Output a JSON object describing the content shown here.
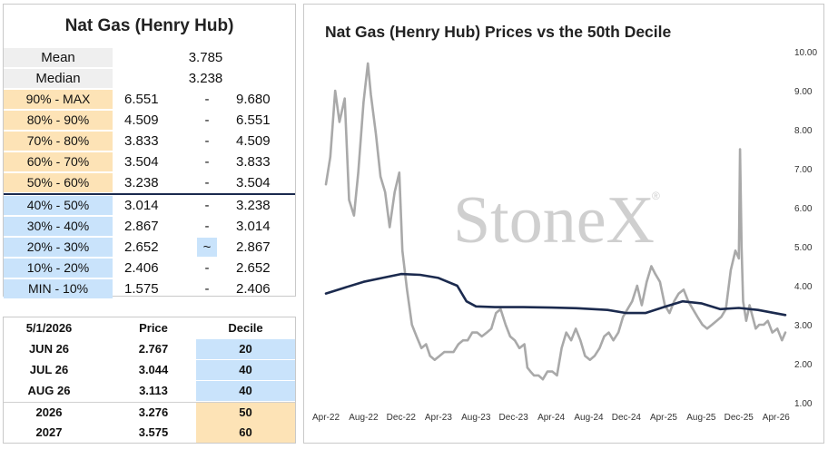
{
  "left_table": {
    "title": "Nat Gas (Henry Hub)",
    "mean": {
      "label": "Mean",
      "value": "3.785"
    },
    "median": {
      "label": "Median",
      "value": "3.238"
    },
    "deciles": [
      {
        "label": "90% - MAX",
        "low": "6.551",
        "sep": "-",
        "high": "9.680",
        "color": "orange"
      },
      {
        "label": "80% - 90%",
        "low": "4.509",
        "sep": "-",
        "high": "6.551",
        "color": "orange"
      },
      {
        "label": "70% - 80%",
        "low": "3.833",
        "sep": "-",
        "high": "4.509",
        "color": "orange"
      },
      {
        "label": "60% - 70%",
        "low": "3.504",
        "sep": "-",
        "high": "3.833",
        "color": "orange"
      },
      {
        "label": "50% - 60%",
        "low": "3.238",
        "sep": "-",
        "high": "3.504",
        "color": "orange"
      },
      {
        "label": "40% - 50%",
        "low": "3.014",
        "sep": "-",
        "high": "3.238",
        "color": "blue"
      },
      {
        "label": "30% - 40%",
        "low": "2.867",
        "sep": "-",
        "high": "3.014",
        "color": "blue"
      },
      {
        "label": "20% - 30%",
        "low": "2.652",
        "sep": "~",
        "high": "2.867",
        "color": "blue",
        "current": true
      },
      {
        "label": "10% - 20%",
        "low": "2.406",
        "sep": "-",
        "high": "2.652",
        "color": "blue"
      },
      {
        "label": "MIN - 10%",
        "low": "1.575",
        "sep": "-",
        "high": "2.406",
        "color": "blue"
      }
    ]
  },
  "bottom_table": {
    "headers": [
      "5/1/2026",
      "Price",
      "Decile"
    ],
    "rows": [
      {
        "contract": "JUN 26",
        "price": "2.767",
        "decile": "20",
        "color": "blue"
      },
      {
        "contract": "JUL 26",
        "price": "3.044",
        "decile": "40",
        "color": "blue"
      },
      {
        "contract": "AUG 26",
        "price": "3.113",
        "decile": "40",
        "color": "blue"
      },
      {
        "contract": "2026",
        "price": "3.276",
        "decile": "50",
        "color": "orange"
      },
      {
        "contract": "2027",
        "price": "3.575",
        "decile": "60",
        "color": "orange"
      }
    ]
  },
  "colors": {
    "orange": "#fde3b6",
    "blue": "#c9e3fb",
    "navy": "#1b2a4e",
    "price_line": "#a9a9a9"
  },
  "chart_data": {
    "type": "line",
    "title": "Nat Gas (Henry Hub) Prices vs the 50th Decile",
    "watermark": "StoneX",
    "x_tick_labels": [
      "Apr-22",
      "Aug-22",
      "Dec-22",
      "Apr-23",
      "Aug-23",
      "Dec-23",
      "Apr-24",
      "Aug-24",
      "Dec-24",
      "Apr-25",
      "Aug-25",
      "Dec-25",
      "Apr-26"
    ],
    "y_tick_labels": [
      "10.00",
      "9.00",
      "8.00",
      "7.00",
      "6.00",
      "5.00",
      "4.00",
      "3.00",
      "2.00",
      "1.00"
    ],
    "ylim": [
      1,
      10
    ],
    "xlim": [
      "2022-04-01",
      "2026-05-01"
    ],
    "series": [
      {
        "key": "price",
        "x": [
          "2022-04-01",
          "2022-04-15",
          "2022-05-01",
          "2022-05-15",
          "2022-06-01",
          "2022-06-15",
          "2022-07-01",
          "2022-07-15",
          "2022-08-01",
          "2022-08-15",
          "2022-08-25",
          "2022-09-10",
          "2022-09-25",
          "2022-10-10",
          "2022-10-25",
          "2022-11-10",
          "2022-11-25",
          "2022-12-05",
          "2022-12-20",
          "2023-01-05",
          "2023-01-20",
          "2023-02-05",
          "2023-02-20",
          "2023-03-05",
          "2023-03-20",
          "2023-04-05",
          "2023-04-20",
          "2023-05-05",
          "2023-05-20",
          "2023-06-05",
          "2023-06-20",
          "2023-07-05",
          "2023-07-20",
          "2023-08-05",
          "2023-08-20",
          "2023-09-05",
          "2023-09-20",
          "2023-10-05",
          "2023-10-20",
          "2023-11-05",
          "2023-11-20",
          "2023-12-05",
          "2023-12-20",
          "2024-01-05",
          "2024-01-15",
          "2024-01-25",
          "2024-02-05",
          "2024-02-20",
          "2024-03-05",
          "2024-03-20",
          "2024-04-05",
          "2024-04-20",
          "2024-05-05",
          "2024-05-20",
          "2024-06-05",
          "2024-06-20",
          "2024-07-05",
          "2024-07-20",
          "2024-08-05",
          "2024-08-20",
          "2024-09-05",
          "2024-09-20",
          "2024-10-05",
          "2024-10-20",
          "2024-11-05",
          "2024-11-20",
          "2024-12-05",
          "2024-12-20",
          "2025-01-05",
          "2025-01-20",
          "2025-02-05",
          "2025-02-20",
          "2025-03-05",
          "2025-03-20",
          "2025-04-05",
          "2025-04-20",
          "2025-05-05",
          "2025-05-20",
          "2025-06-05",
          "2025-06-20",
          "2025-07-05",
          "2025-07-20",
          "2025-08-05",
          "2025-08-20",
          "2025-09-05",
          "2025-09-20",
          "2025-10-05",
          "2025-10-20",
          "2025-11-05",
          "2025-11-20",
          "2025-12-01",
          "2025-12-05",
          "2025-12-10",
          "2025-12-15",
          "2025-12-25",
          "2026-01-05",
          "2026-01-15",
          "2026-01-25",
          "2026-02-05",
          "2026-02-20",
          "2026-03-05",
          "2026-03-20",
          "2026-04-05",
          "2026-04-20",
          "2026-05-01"
        ],
        "y": [
          6.6,
          7.3,
          9.0,
          8.2,
          8.8,
          6.2,
          5.8,
          6.9,
          8.7,
          9.7,
          8.9,
          7.9,
          6.8,
          6.4,
          5.5,
          6.4,
          6.9,
          4.9,
          3.9,
          3.0,
          2.7,
          2.4,
          2.5,
          2.2,
          2.1,
          2.2,
          2.3,
          2.3,
          2.3,
          2.5,
          2.6,
          2.6,
          2.8,
          2.8,
          2.7,
          2.8,
          2.9,
          3.3,
          3.4,
          3.0,
          2.7,
          2.6,
          2.4,
          2.5,
          1.9,
          1.8,
          1.7,
          1.7,
          1.6,
          1.8,
          1.8,
          1.7,
          2.4,
          2.8,
          2.6,
          2.9,
          2.6,
          2.2,
          2.1,
          2.2,
          2.4,
          2.7,
          2.8,
          2.6,
          2.8,
          3.2,
          3.4,
          3.6,
          4.0,
          3.5,
          4.1,
          4.5,
          4.3,
          4.1,
          3.5,
          3.3,
          3.6,
          3.8,
          3.9,
          3.6,
          3.4,
          3.2,
          3.0,
          2.9,
          3.0,
          3.1,
          3.2,
          3.4,
          4.4,
          4.9,
          4.7,
          7.5,
          5.0,
          3.6,
          3.1,
          3.5,
          3.2,
          2.9,
          3.0,
          3.0,
          3.1,
          2.8,
          2.9,
          2.6,
          2.8
        ]
      },
      {
        "key": "decile50",
        "x": [
          "2022-04-01",
          "2022-06-01",
          "2022-08-01",
          "2022-10-01",
          "2022-12-01",
          "2023-02-01",
          "2023-04-01",
          "2023-06-01",
          "2023-07-01",
          "2023-08-01",
          "2023-10-01",
          "2024-01-01",
          "2024-04-01",
          "2024-07-01",
          "2024-10-01",
          "2024-12-01",
          "2025-02-01",
          "2025-04-01",
          "2025-06-01",
          "2025-08-01",
          "2025-10-01",
          "2025-12-01",
          "2026-02-01",
          "2026-05-01"
        ],
        "y": [
          3.8,
          3.95,
          4.1,
          4.2,
          4.3,
          4.28,
          4.2,
          4.0,
          3.6,
          3.47,
          3.45,
          3.45,
          3.44,
          3.42,
          3.38,
          3.3,
          3.3,
          3.45,
          3.6,
          3.55,
          3.4,
          3.43,
          3.38,
          3.25
        ]
      }
    ]
  }
}
